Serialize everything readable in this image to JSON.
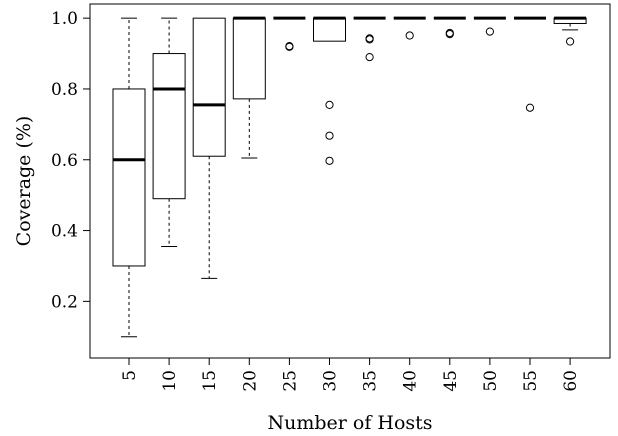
{
  "chart_data": {
    "type": "boxplot",
    "title": "",
    "xlabel": "Number of Hosts",
    "ylabel": "Coverage (%)",
    "ylim": [
      0.04,
      1.04
    ],
    "yticks": [
      0.2,
      0.4,
      0.6,
      0.8,
      1.0
    ],
    "ytick_labels": [
      "0.2",
      "0.4",
      "0.6",
      "0.8",
      "1.0"
    ],
    "categories": [
      "5",
      "10",
      "15",
      "20",
      "25",
      "30",
      "35",
      "40",
      "45",
      "50",
      "55",
      "60"
    ],
    "grid": false,
    "boxes": [
      {
        "category": "5",
        "whisker_low": 0.1,
        "q1": 0.3,
        "median": 0.6,
        "q3": 0.8,
        "whisker_high": 1.0,
        "outliers": []
      },
      {
        "category": "10",
        "whisker_low": 0.355,
        "q1": 0.49,
        "median": 0.8,
        "q3": 0.9,
        "whisker_high": 1.0,
        "outliers": []
      },
      {
        "category": "15",
        "whisker_low": 0.265,
        "q1": 0.61,
        "median": 0.755,
        "q3": 1.0,
        "whisker_high": 1.0,
        "outliers": []
      },
      {
        "category": "20",
        "whisker_low": 0.605,
        "q1": 0.772,
        "median": 1.0,
        "q3": 1.0,
        "whisker_high": 1.0,
        "outliers": []
      },
      {
        "category": "25",
        "whisker_low": 1.0,
        "q1": 1.0,
        "median": 1.0,
        "q3": 1.0,
        "whisker_high": 1.0,
        "outliers": [
          0.921,
          0.919
        ]
      },
      {
        "category": "30",
        "whisker_low": 0.935,
        "q1": 0.935,
        "median": 1.0,
        "q3": 1.0,
        "whisker_high": 1.0,
        "outliers": [
          0.755,
          0.668,
          0.597
        ]
      },
      {
        "category": "35",
        "whisker_low": 1.0,
        "q1": 1.0,
        "median": 1.0,
        "q3": 1.0,
        "whisker_high": 1.0,
        "outliers": [
          0.943,
          0.94,
          0.89
        ]
      },
      {
        "category": "40",
        "whisker_low": 1.0,
        "q1": 1.0,
        "median": 1.0,
        "q3": 1.0,
        "whisker_high": 1.0,
        "outliers": [
          0.951
        ]
      },
      {
        "category": "45",
        "whisker_low": 1.0,
        "q1": 1.0,
        "median": 1.0,
        "q3": 1.0,
        "whisker_high": 1.0,
        "outliers": [
          0.958,
          0.955
        ]
      },
      {
        "category": "50",
        "whisker_low": 1.0,
        "q1": 1.0,
        "median": 1.0,
        "q3": 1.0,
        "whisker_high": 1.0,
        "outliers": [
          0.962
        ]
      },
      {
        "category": "55",
        "whisker_low": 1.0,
        "q1": 1.0,
        "median": 1.0,
        "q3": 1.0,
        "whisker_high": 1.0,
        "outliers": [
          0.747
        ]
      },
      {
        "category": "60",
        "whisker_low": 0.967,
        "q1": 0.985,
        "median": 1.0,
        "q3": 1.0,
        "whisker_high": 1.0,
        "outliers": [
          0.934
        ]
      }
    ]
  }
}
